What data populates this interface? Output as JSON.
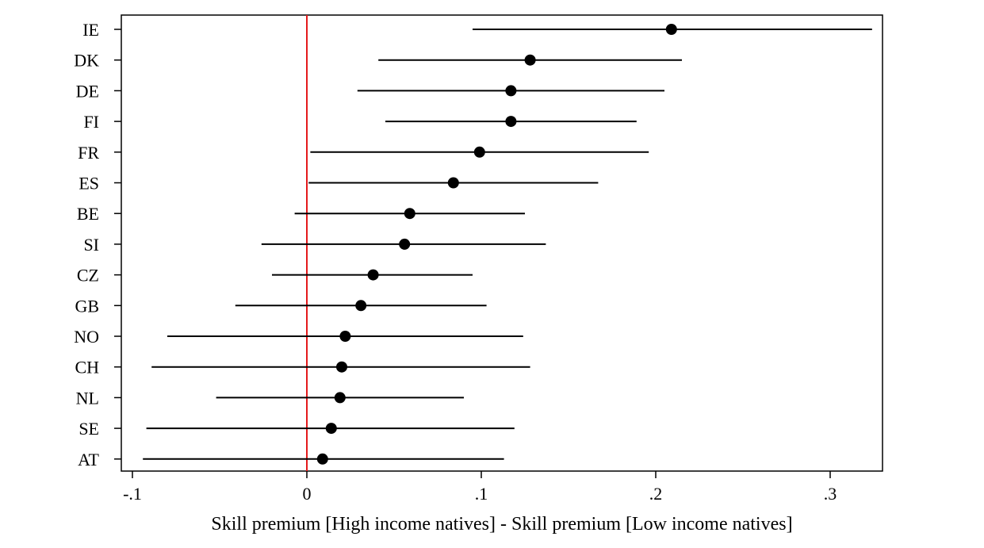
{
  "chart_data": {
    "type": "dot-whisker",
    "title": "",
    "xlabel": "Skill premium [High income natives] - Skill premium [Low income natives]",
    "ylabel": "",
    "xlim": [
      -0.1,
      0.33
    ],
    "xticks": [
      -0.1,
      0,
      0.1,
      0.2,
      0.3
    ],
    "xtick_labels": [
      "-.1",
      "0",
      ".1",
      ".2",
      ".3"
    ],
    "reference_line": {
      "x": 0,
      "color": "#e41a1c"
    },
    "grid": false,
    "legend": "none",
    "points": [
      {
        "country": "IE",
        "estimate": 0.209,
        "ci_low": 0.095,
        "ci_high": 0.324
      },
      {
        "country": "DK",
        "estimate": 0.128,
        "ci_low": 0.041,
        "ci_high": 0.215
      },
      {
        "country": "DE",
        "estimate": 0.117,
        "ci_low": 0.029,
        "ci_high": 0.205
      },
      {
        "country": "FI",
        "estimate": 0.117,
        "ci_low": 0.045,
        "ci_high": 0.189
      },
      {
        "country": "FR",
        "estimate": 0.099,
        "ci_low": 0.002,
        "ci_high": 0.196
      },
      {
        "country": "ES",
        "estimate": 0.084,
        "ci_low": 0.001,
        "ci_high": 0.167
      },
      {
        "country": "BE",
        "estimate": 0.059,
        "ci_low": -0.007,
        "ci_high": 0.125
      },
      {
        "country": "SI",
        "estimate": 0.056,
        "ci_low": -0.026,
        "ci_high": 0.137
      },
      {
        "country": "CZ",
        "estimate": 0.038,
        "ci_low": -0.02,
        "ci_high": 0.095
      },
      {
        "country": "GB",
        "estimate": 0.031,
        "ci_low": -0.041,
        "ci_high": 0.103
      },
      {
        "country": "NO",
        "estimate": 0.022,
        "ci_low": -0.08,
        "ci_high": 0.124
      },
      {
        "country": "CH",
        "estimate": 0.02,
        "ci_low": -0.089,
        "ci_high": 0.128
      },
      {
        "country": "NL",
        "estimate": 0.019,
        "ci_low": -0.052,
        "ci_high": 0.09
      },
      {
        "country": "SE",
        "estimate": 0.014,
        "ci_low": -0.092,
        "ci_high": 0.119
      },
      {
        "country": "AT",
        "estimate": 0.009,
        "ci_low": -0.094,
        "ci_high": 0.113
      }
    ]
  }
}
